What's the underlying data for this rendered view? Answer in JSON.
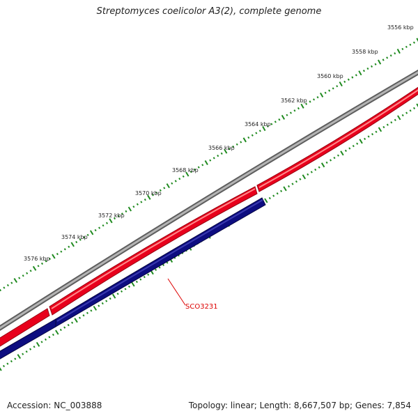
{
  "header": {
    "title": "Streptomyces coelicolor A3(2), complete genome"
  },
  "footer": {
    "accession": "Accession: NC_003888",
    "summary": "Topology: linear; Length: 8,667,507 bp; Genes: 7,854"
  },
  "map": {
    "scale_labels": [
      "3556 kbp",
      "3558 kbp",
      "3560 kbp",
      "3562 kbp",
      "3564 kbp",
      "3566 kbp",
      "3568 kbp",
      "3570 kbp",
      "3572 kbp",
      "3574 kbp",
      "3576 kbp"
    ],
    "gene_label": "SCO3231",
    "colors": {
      "backbone": "#8a8a8a",
      "forward_genes": "#e8001c",
      "reverse_genes": "#0d0d80",
      "ticks": "#1f8a1f",
      "gene_label": "#dd0000"
    }
  }
}
